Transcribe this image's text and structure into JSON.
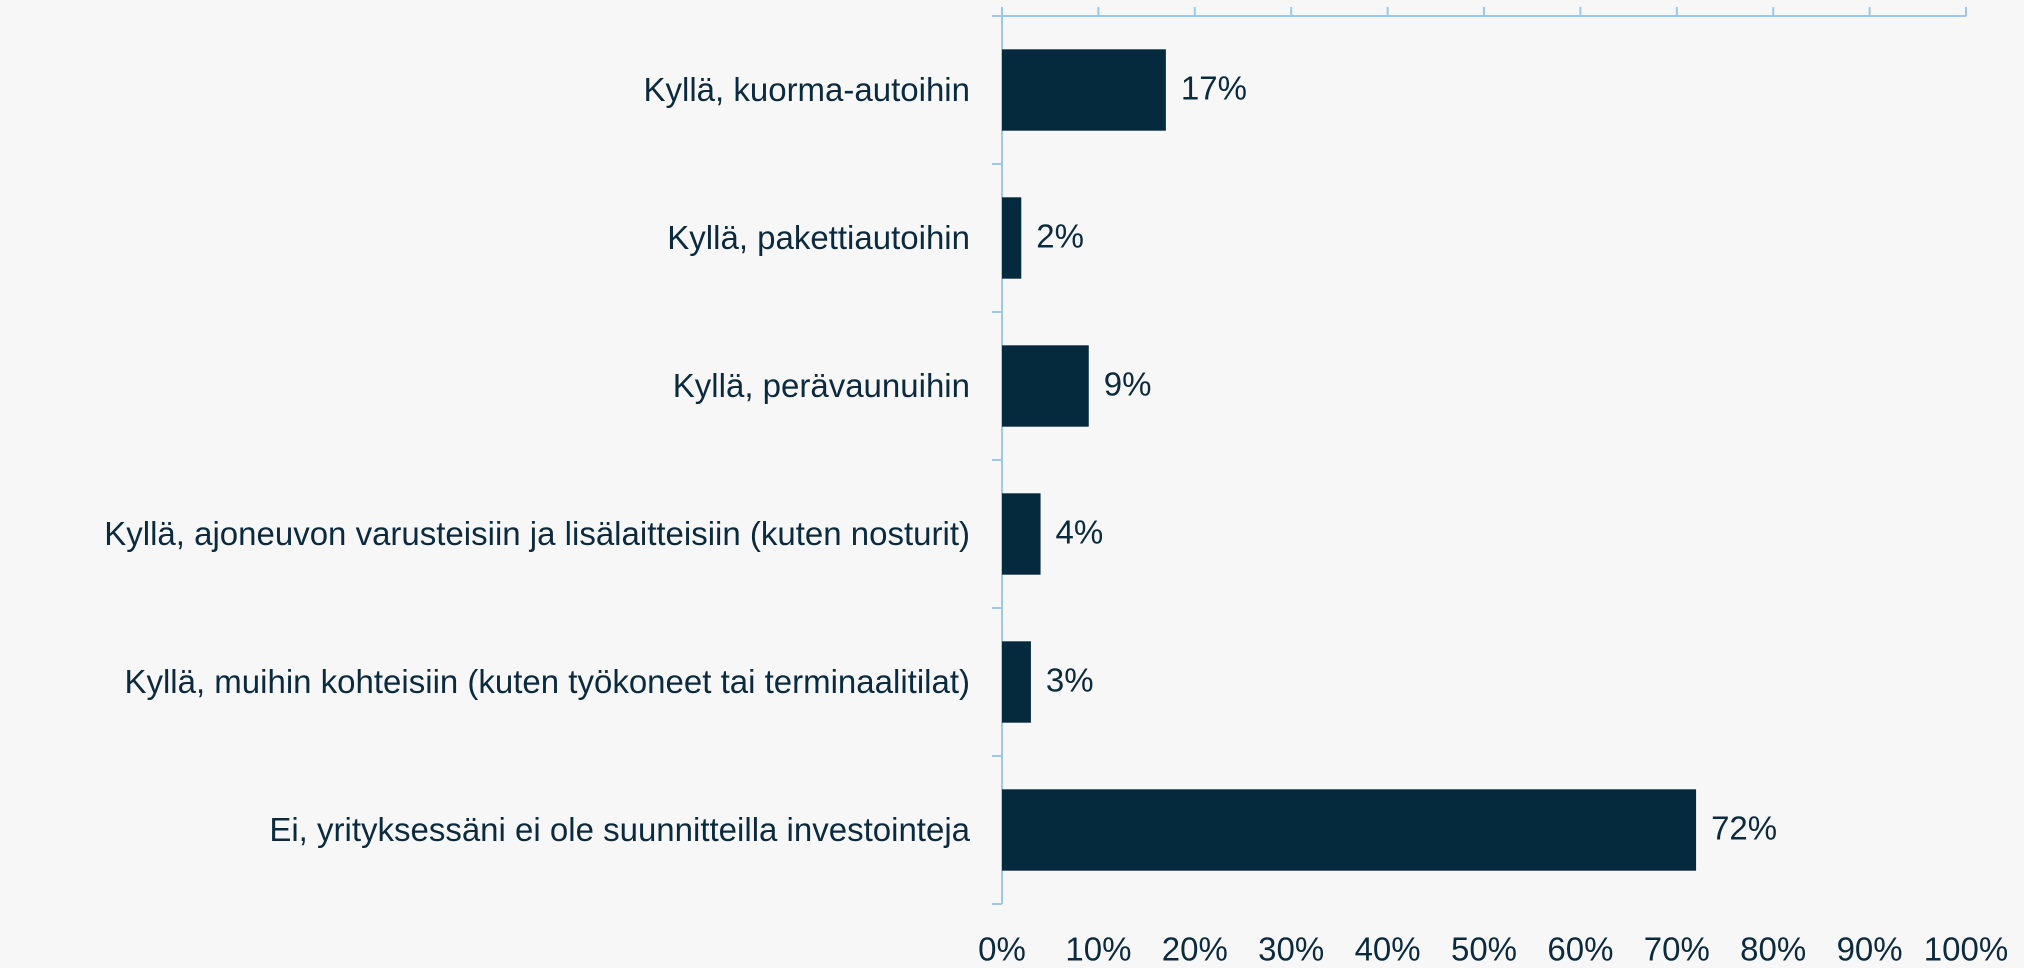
{
  "chart_data": {
    "type": "bar",
    "orientation": "horizontal",
    "categories": [
      "Kyllä, kuorma-autoihin",
      "Kyllä, pakettiautoihin",
      "Kyllä, perävaunuihin",
      "Kyllä, ajoneuvon varusteisiin ja lisälaitteisiin (kuten nosturit)",
      "Kyllä, muihin kohteisiin (kuten työkoneet tai terminaalitilat)",
      "Ei, yrityksessäni ei ole suunnitteilla investointeja"
    ],
    "values": [
      17,
      2,
      9,
      4,
      3,
      72
    ],
    "value_labels": [
      "17%",
      "2%",
      "9%",
      "4%",
      "3%",
      "72%"
    ],
    "color": "#052a3d",
    "xlim": [
      0,
      100
    ],
    "xticks": [
      {
        "value": 0,
        "label": "0%"
      },
      {
        "value": 10,
        "label": "10%"
      },
      {
        "value": 20,
        "label": "20%"
      },
      {
        "value": 30,
        "label": "30%"
      },
      {
        "value": 40,
        "label": "40%"
      },
      {
        "value": 50,
        "label": "50%"
      },
      {
        "value": 60,
        "label": "60%"
      },
      {
        "value": 70,
        "label": "70%"
      },
      {
        "value": 80,
        "label": "80%"
      },
      {
        "value": 90,
        "label": "90%"
      },
      {
        "value": 100,
        "label": "100%"
      }
    ],
    "grid": false
  }
}
